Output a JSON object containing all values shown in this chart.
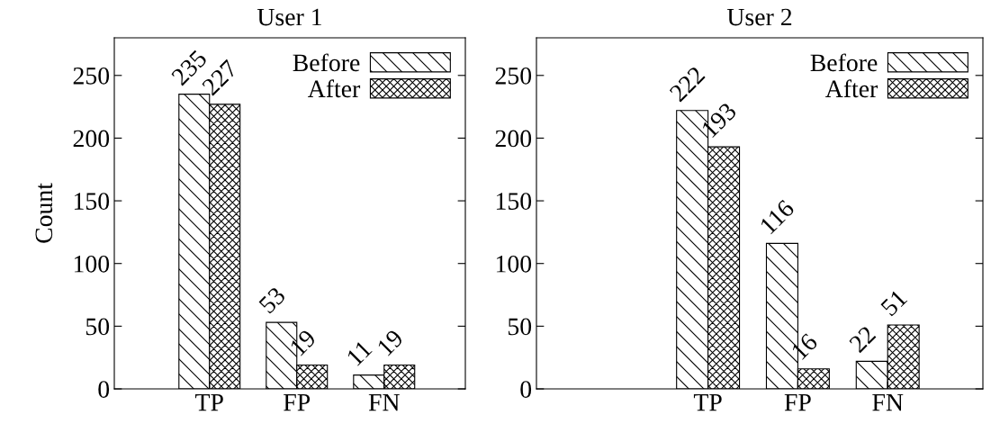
{
  "chart_data": [
    {
      "type": "bar",
      "title": "User 1",
      "ylabel": "Count",
      "categories": [
        "TP",
        "FP",
        "FN"
      ],
      "series": [
        {
          "name": "Before",
          "color": "#000000",
          "values": [
            235,
            53,
            11
          ]
        },
        {
          "name": "After",
          "color": "#000000",
          "values": [
            227,
            19,
            19
          ]
        }
      ],
      "ylim": [
        0,
        280
      ],
      "yticks": [
        0,
        50,
        100,
        150,
        200,
        250
      ],
      "data_labels": true,
      "legend": "top right",
      "grid": false
    },
    {
      "type": "bar",
      "title": "User 2",
      "categories": [
        "TP",
        "FP",
        "FN"
      ],
      "series": [
        {
          "name": "Before",
          "color": "#000000",
          "values": [
            222,
            116,
            22
          ]
        },
        {
          "name": "After",
          "color": "#000000",
          "values": [
            193,
            16,
            51
          ]
        }
      ],
      "ylim": [
        0,
        280
      ],
      "yticks": [
        0,
        50,
        100,
        150,
        200,
        250
      ],
      "data_labels": true,
      "legend": "top right",
      "grid": false
    }
  ]
}
